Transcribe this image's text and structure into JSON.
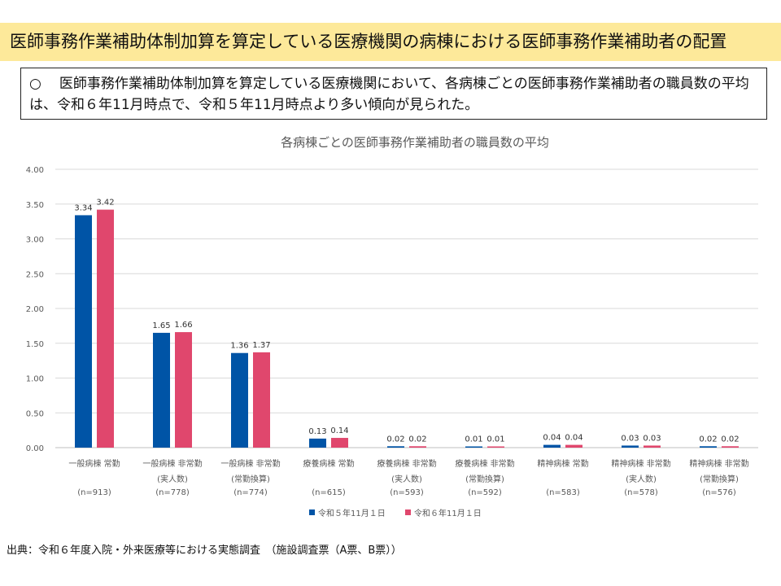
{
  "header": {
    "title": "医師事務作業補助体制加算を算定している医療機関の病棟における医師事務作業補助者の配置"
  },
  "summary": {
    "bullet": "○",
    "text": "医師事務作業補助体制加算を算定している医療機関において、各病棟ごとの医師事務作業補助者の職員数の平均は、令和６年11月時点で、令和５年11月時点より多い傾向が見られた。"
  },
  "footer": {
    "source": "出典：令和６年度入院・外来医療等における実態調査　（施設調査票（A票、B票））"
  },
  "colors": {
    "series_2023": "#0054a6",
    "series_2024": "#e0476d",
    "grid": "#d9d9d9",
    "axis_text": "#595959"
  },
  "chart_data": {
    "type": "bar",
    "title": "各病棟ごとの医師事務作業補助者の職員数の平均",
    "xlabel": "",
    "ylabel": "",
    "ylim": [
      0,
      4
    ],
    "y_ticks": [
      "0.00",
      "0.50",
      "1.00",
      "1.50",
      "2.00",
      "2.50",
      "3.00",
      "3.50",
      "4.00"
    ],
    "grid": true,
    "legend_position": "bottom",
    "categories": [
      {
        "label": [
          "一般病棟 常勤"
        ],
        "n": "(n=913)"
      },
      {
        "label": [
          "一般病棟 非常勤",
          "(実人数)"
        ],
        "n": "(n=778)"
      },
      {
        "label": [
          "一般病棟 非常勤",
          "(常勤換算)"
        ],
        "n": "(n=774)"
      },
      {
        "label": [
          "療養病棟 常勤"
        ],
        "n": "(n=615)"
      },
      {
        "label": [
          "療養病棟 非常勤",
          "(実人数)"
        ],
        "n": "(n=593)"
      },
      {
        "label": [
          "療養病棟 非常勤",
          "(常勤換算)"
        ],
        "n": "(n=592)"
      },
      {
        "label": [
          "精神病棟 常勤"
        ],
        "n": "(n=583)"
      },
      {
        "label": [
          "精神病棟 非常勤",
          "(実人数)"
        ],
        "n": "(n=578)"
      },
      {
        "label": [
          "精神病棟 非常勤",
          "(常勤換算)"
        ],
        "n": "(n=576)"
      }
    ],
    "series": [
      {
        "name": "令和５年11月１日",
        "values": [
          3.34,
          1.65,
          1.36,
          0.13,
          0.02,
          0.01,
          0.04,
          0.03,
          0.02
        ],
        "labels": [
          "3.34",
          "1.65",
          "1.36",
          "0.13",
          "0.02",
          "0.01",
          "0.04",
          "0.03",
          "0.02"
        ]
      },
      {
        "name": "令和６年11月１日",
        "values": [
          3.42,
          1.66,
          1.37,
          0.14,
          0.02,
          0.01,
          0.04,
          0.03,
          0.02
        ],
        "labels": [
          "3.42",
          "1.66",
          "1.37",
          "0.14",
          "0.02",
          "0.01",
          "0.04",
          "0.03",
          "0.02"
        ]
      }
    ]
  }
}
